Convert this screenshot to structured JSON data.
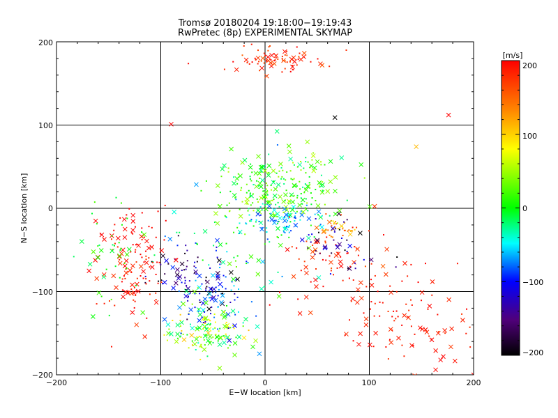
{
  "chart_data": {
    "type": "scatter",
    "title": "Tromsø 20180204 19:18:00−19:19:43",
    "subtitle": "RwPretec (8p) EXPERIMENTAL SKYMAP",
    "xlabel": "E−W location [km]",
    "ylabel": "N−S location [km]",
    "xlim": [
      -200,
      200
    ],
    "ylim": [
      -200,
      200
    ],
    "xticks": [
      "−200",
      "−100",
      "0",
      "100",
      "200"
    ],
    "yticks": [
      "−200",
      "−100",
      "0",
      "100",
      "200"
    ],
    "grid": true,
    "colorbar": {
      "label": "[m/s]",
      "range": [
        -200,
        200
      ],
      "ticks": [
        "200",
        "100",
        "0",
        "−100",
        "−200"
      ],
      "colormap": [
        "#000000",
        "#50007a",
        "#0000ff",
        "#00ffff",
        "#00ff00",
        "#ffff00",
        "#ff8800",
        "#ff0000"
      ]
    },
    "markers": [
      "×",
      "·"
    ],
    "point_clusters": [
      {
        "cx": 15,
        "cy": 178,
        "sx": 25,
        "sy": 8,
        "n": 80,
        "vmin": 150,
        "vmax": 200
      },
      {
        "cx": 15,
        "cy": 20,
        "sx": 30,
        "sy": 25,
        "n": 260,
        "vmin": -30,
        "vmax": 60
      },
      {
        "cx": 20,
        "cy": -15,
        "sx": 20,
        "sy": 10,
        "n": 70,
        "vmin": -90,
        "vmax": -30
      },
      {
        "cx": -55,
        "cy": -150,
        "sx": 18,
        "sy": 14,
        "n": 130,
        "vmin": -40,
        "vmax": 110
      },
      {
        "cx": -70,
        "cy": -85,
        "sx": 18,
        "sy": 20,
        "n": 80,
        "vmin": -210,
        "vmax": -90
      },
      {
        "cx": -50,
        "cy": -110,
        "sx": 18,
        "sy": 18,
        "n": 60,
        "vmin": -130,
        "vmax": -50
      },
      {
        "cx": -30,
        "cy": -50,
        "sx": 35,
        "sy": 40,
        "n": 80,
        "vmin": -100,
        "vmax": 40
      },
      {
        "cx": -130,
        "cy": -80,
        "sx": 15,
        "sy": 25,
        "n": 90,
        "vmin": 170,
        "vmax": 205
      },
      {
        "cx": 130,
        "cy": -130,
        "sx": 35,
        "sy": 35,
        "n": 110,
        "vmin": 170,
        "vmax": 205
      },
      {
        "cx": 60,
        "cy": -60,
        "sx": 25,
        "sy": 25,
        "n": 70,
        "vmin": 150,
        "vmax": 205
      },
      {
        "cx": 70,
        "cy": -25,
        "sx": 8,
        "sy": 6,
        "n": 30,
        "vmin": 90,
        "vmax": 160
      },
      {
        "cx": 70,
        "cy": -40,
        "sx": 20,
        "sy": 20,
        "n": 40,
        "vmin": -210,
        "vmax": -100
      },
      {
        "cx": -120,
        "cy": -30,
        "sx": 20,
        "sy": 20,
        "n": 40,
        "vmin": 190,
        "vmax": 205
      },
      {
        "cx": -140,
        "cy": -60,
        "sx": 15,
        "sy": 40,
        "n": 40,
        "vmin": -20,
        "vmax": 30
      }
    ],
    "named_points": [
      {
        "x": 176,
        "y": 112,
        "v": 200
      },
      {
        "x": -90,
        "y": 101,
        "v": 200
      },
      {
        "x": 67,
        "y": 109,
        "v": -200
      },
      {
        "x": 145,
        "y": 74,
        "v": 110
      },
      {
        "x": -165,
        "y": -130,
        "v": 0
      },
      {
        "x": 200,
        "y": -200,
        "v": 200
      }
    ]
  }
}
